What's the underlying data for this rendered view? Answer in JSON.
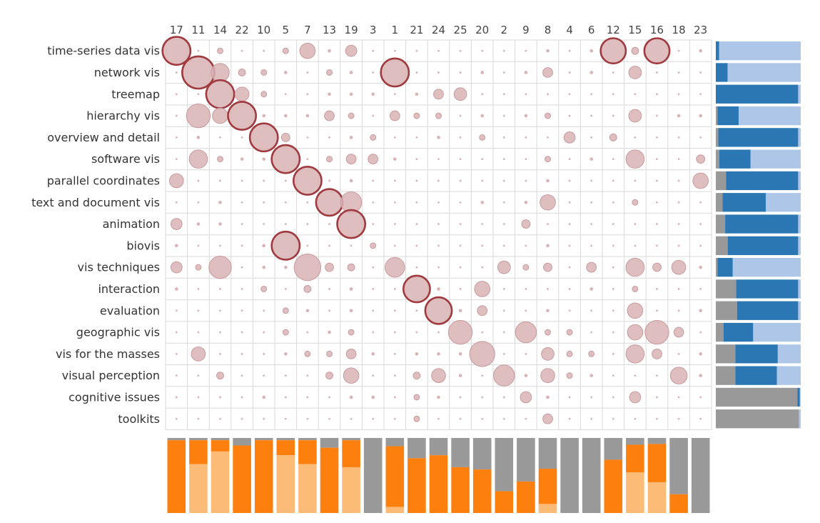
{
  "chart_data": {
    "type": "bubble-matrix",
    "columns": [
      "17",
      "11",
      "14",
      "22",
      "10",
      "5",
      "7",
      "13",
      "19",
      "3",
      "1",
      "21",
      "24",
      "25",
      "20",
      "2",
      "9",
      "8",
      "4",
      "6",
      "12",
      "15",
      "16",
      "18",
      "23"
    ],
    "rows": [
      "time-series data vis",
      "network vis",
      "treemap",
      "hierarchy vis",
      "overview and detail",
      "software vis",
      "parallel coordinates",
      "text and document vis",
      "animation",
      "biovis",
      "vis techniques",
      "interaction",
      "evaluation",
      "geographic vis",
      "vis for the masses",
      "visual perception",
      "cognitive issues",
      "toolkits"
    ],
    "cells": [
      [
        19,
        1,
        3,
        1,
        1,
        3,
        10,
        2,
        7,
        1,
        1,
        1,
        1,
        1,
        1,
        1,
        1,
        2,
        1,
        2,
        17,
        4,
        17,
        1,
        2
      ],
      [
        1,
        22,
        12,
        4,
        3,
        2,
        1,
        3,
        2,
        1,
        19,
        1,
        1,
        1,
        2,
        1,
        2,
        6,
        1,
        2,
        1,
        8,
        1,
        1,
        1
      ],
      [
        1,
        1,
        19,
        9,
        3,
        1,
        1,
        2,
        2,
        2,
        1,
        2,
        6,
        8,
        1,
        1,
        1,
        1,
        1,
        1,
        1,
        1,
        1,
        1,
        1
      ],
      [
        1,
        16,
        10,
        19,
        2,
        2,
        2,
        6,
        3,
        1,
        6,
        3,
        3,
        1,
        2,
        1,
        2,
        3,
        1,
        1,
        1,
        8,
        1,
        2,
        2
      ],
      [
        1,
        2,
        1,
        1,
        19,
        5,
        1,
        1,
        2,
        3,
        1,
        1,
        2,
        1,
        3,
        1,
        1,
        1,
        7,
        1,
        4,
        1,
        1,
        1,
        1
      ],
      [
        1,
        12,
        3,
        2,
        2,
        19,
        1,
        3,
        6,
        6,
        2,
        1,
        1,
        1,
        1,
        1,
        1,
        3,
        1,
        2,
        1,
        12,
        1,
        1,
        5
      ],
      [
        9,
        1,
        1,
        1,
        1,
        1,
        19,
        1,
        2,
        1,
        1,
        1,
        1,
        1,
        1,
        1,
        1,
        2,
        1,
        1,
        1,
        1,
        1,
        1,
        10
      ],
      [
        1,
        1,
        2,
        1,
        1,
        1,
        1,
        18,
        14,
        1,
        1,
        1,
        1,
        1,
        2,
        1,
        2,
        10,
        1,
        1,
        1,
        3,
        1,
        1,
        1
      ],
      [
        7,
        2,
        2,
        1,
        1,
        1,
        1,
        1,
        19,
        1,
        1,
        1,
        1,
        1,
        1,
        1,
        5,
        1,
        1,
        1,
        1,
        1,
        1,
        1,
        1
      ],
      [
        2,
        1,
        1,
        1,
        2,
        19,
        1,
        1,
        1,
        3,
        1,
        1,
        1,
        1,
        1,
        1,
        1,
        2,
        1,
        1,
        1,
        1,
        1,
        1,
        1
      ],
      [
        7,
        3,
        15,
        1,
        2,
        2,
        18,
        5,
        4,
        1,
        13,
        1,
        1,
        1,
        1,
        8,
        3,
        5,
        1,
        6,
        1,
        12,
        5,
        9,
        2
      ],
      [
        2,
        1,
        1,
        1,
        3,
        1,
        4,
        1,
        2,
        1,
        1,
        18,
        2,
        1,
        10,
        1,
        1,
        1,
        1,
        2,
        1,
        3,
        1,
        1,
        1
      ],
      [
        1,
        1,
        1,
        1,
        1,
        3,
        2,
        1,
        2,
        1,
        1,
        1,
        18,
        2,
        6,
        1,
        1,
        2,
        1,
        1,
        1,
        10,
        1,
        1,
        2
      ],
      [
        1,
        1,
        1,
        1,
        1,
        3,
        1,
        2,
        3,
        1,
        1,
        1,
        1,
        16,
        1,
        1,
        14,
        3,
        3,
        1,
        1,
        10,
        16,
        6,
        1
      ],
      [
        1,
        9,
        1,
        1,
        1,
        2,
        3,
        3,
        6,
        2,
        1,
        2,
        2,
        2,
        17,
        1,
        1,
        8,
        3,
        3,
        1,
        12,
        6,
        1,
        2
      ],
      [
        1,
        1,
        4,
        1,
        1,
        1,
        1,
        4,
        10,
        1,
        1,
        4,
        9,
        2,
        1,
        14,
        2,
        9,
        3,
        2,
        1,
        1,
        1,
        11,
        2
      ],
      [
        1,
        1,
        1,
        1,
        2,
        1,
        1,
        1,
        2,
        2,
        1,
        3,
        2,
        1,
        1,
        1,
        7,
        2,
        1,
        1,
        1,
        7,
        1,
        1,
        1
      ],
      [
        1,
        1,
        1,
        1,
        1,
        1,
        1,
        1,
        1,
        1,
        1,
        3,
        1,
        1,
        1,
        1,
        1,
        6,
        1,
        1,
        1,
        1,
        1,
        1,
        1
      ]
    ],
    "highlighted": [
      [
        0,
        0
      ],
      [
        1,
        1
      ],
      [
        2,
        2
      ],
      [
        3,
        3
      ],
      [
        4,
        4
      ],
      [
        5,
        5
      ],
      [
        6,
        6
      ],
      [
        7,
        7
      ],
      [
        8,
        8
      ],
      [
        9,
        5
      ],
      [
        11,
        11
      ],
      [
        12,
        12
      ],
      [
        1,
        10
      ],
      [
        0,
        20
      ],
      [
        0,
        22
      ]
    ],
    "row_bars": [
      {
        "gray": 0.0,
        "blue": 0.04,
        "light": 0.96
      },
      {
        "gray": 0.0,
        "blue": 0.14,
        "light": 0.86
      },
      {
        "gray": 0.0,
        "blue": 0.97,
        "light": 0.03
      },
      {
        "gray": 0.02,
        "blue": 0.25,
        "light": 0.73
      },
      {
        "gray": 0.03,
        "blue": 0.94,
        "light": 0.03
      },
      {
        "gray": 0.04,
        "blue": 0.37,
        "light": 0.59
      },
      {
        "gray": 0.12,
        "blue": 0.85,
        "light": 0.03
      },
      {
        "gray": 0.08,
        "blue": 0.51,
        "light": 0.41
      },
      {
        "gray": 0.11,
        "blue": 0.86,
        "light": 0.03
      },
      {
        "gray": 0.14,
        "blue": 0.83,
        "light": 0.03
      },
      {
        "gray": 0.02,
        "blue": 0.18,
        "light": 0.8
      },
      {
        "gray": 0.24,
        "blue": 0.73,
        "light": 0.03
      },
      {
        "gray": 0.25,
        "blue": 0.72,
        "light": 0.03
      },
      {
        "gray": 0.09,
        "blue": 0.35,
        "light": 0.56
      },
      {
        "gray": 0.23,
        "blue": 0.5,
        "light": 0.27
      },
      {
        "gray": 0.23,
        "blue": 0.49,
        "light": 0.28
      },
      {
        "gray": 0.96,
        "blue": 0.03,
        "light": 0.01
      },
      {
        "gray": 0.98,
        "blue": 0.0,
        "light": 0.02
      }
    ],
    "col_bars": [
      {
        "gray": 0.03,
        "orange": 0.97,
        "light": 0.0
      },
      {
        "gray": 0.03,
        "orange": 0.32,
        "light": 0.65
      },
      {
        "gray": 0.03,
        "orange": 0.15,
        "light": 0.82
      },
      {
        "gray": 0.1,
        "orange": 0.9,
        "light": 0.0
      },
      {
        "gray": 0.03,
        "orange": 0.97,
        "light": 0.0
      },
      {
        "gray": 0.03,
        "orange": 0.2,
        "light": 0.77
      },
      {
        "gray": 0.03,
        "orange": 0.32,
        "light": 0.65
      },
      {
        "gray": 0.13,
        "orange": 0.87,
        "light": 0.0
      },
      {
        "gray": 0.03,
        "orange": 0.36,
        "light": 0.61
      },
      {
        "gray": 1.0,
        "orange": 0.0,
        "light": 0.0
      },
      {
        "gray": 0.11,
        "orange": 0.81,
        "light": 0.08
      },
      {
        "gray": 0.27,
        "orange": 0.73,
        "light": 0.0
      },
      {
        "gray": 0.23,
        "orange": 0.77,
        "light": 0.0
      },
      {
        "gray": 0.39,
        "orange": 0.61,
        "light": 0.0
      },
      {
        "gray": 0.42,
        "orange": 0.58,
        "light": 0.0
      },
      {
        "gray": 0.71,
        "orange": 0.29,
        "light": 0.0
      },
      {
        "gray": 0.58,
        "orange": 0.42,
        "light": 0.0
      },
      {
        "gray": 0.41,
        "orange": 0.47,
        "light": 0.12
      },
      {
        "gray": 1.0,
        "orange": 0.0,
        "light": 0.0
      },
      {
        "gray": 1.0,
        "orange": 0.0,
        "light": 0.0
      },
      {
        "gray": 0.29,
        "orange": 0.71,
        "light": 0.0
      },
      {
        "gray": 0.09,
        "orange": 0.37,
        "light": 0.54
      },
      {
        "gray": 0.08,
        "orange": 0.51,
        "light": 0.41
      },
      {
        "gray": 0.75,
        "orange": 0.25,
        "light": 0.0
      },
      {
        "gray": 1.0,
        "orange": 0.0,
        "light": 0.0
      }
    ],
    "colors": {
      "bubble_fill": "#d9b3b5",
      "bubble_stroke": "#c89a9d",
      "highlight_stroke": "#a03a3e",
      "grid": "#d9d9d9",
      "gray": "#999999",
      "blue": "#2a77b4",
      "light_blue": "#aec7e8",
      "orange": "#fd7f0e",
      "light_orange": "#fdbb78"
    }
  }
}
